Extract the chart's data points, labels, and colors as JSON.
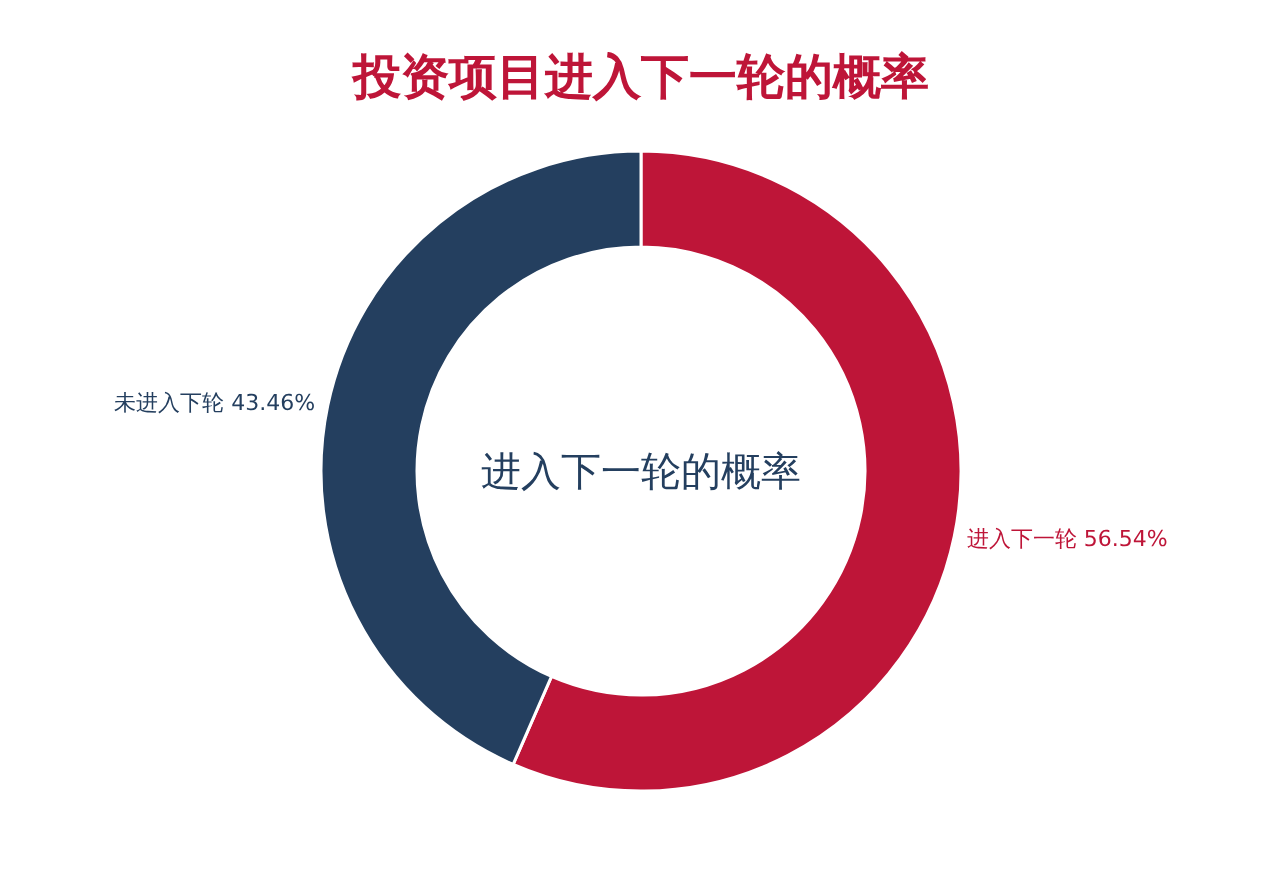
{
  "chart_data": {
    "type": "donut",
    "title": "投资项目进入下一轮的概率",
    "categories": [
      "进入下一轮",
      "未进入下轮"
    ],
    "values": [
      56.54,
      43.46
    ],
    "colors": [
      "#be1538",
      "#243f5f"
    ],
    "value_labels": [
      "56.54%",
      "43.46%"
    ],
    "annotations": [
      "进入下一轮的概率"
    ]
  }
}
